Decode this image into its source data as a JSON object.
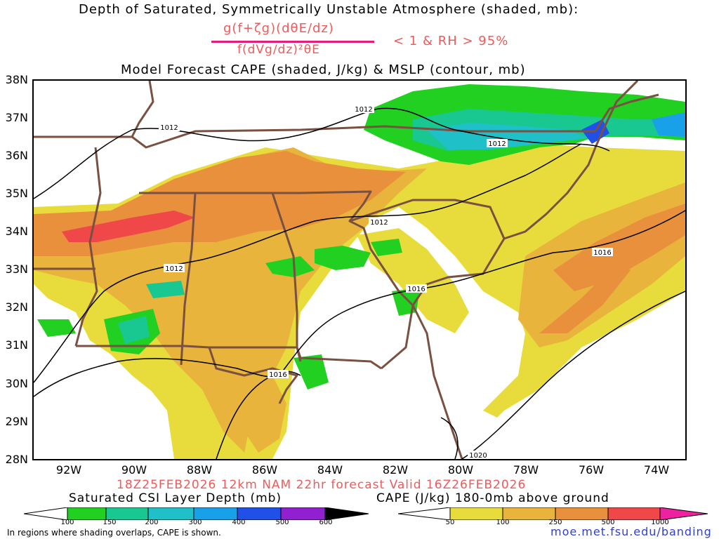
{
  "header": {
    "line1": "Depth of Saturated, Symmetrically Unstable Atmosphere (shaded, mb):",
    "numerator": "g(f+ζg)(dθE/dz)",
    "denominator": "f(dVg/dz)²θE",
    "condition": "< 1 & RH > 95%",
    "line3": "Model Forecast CAPE (shaded, J/kg) & MSLP (contour, mb)"
  },
  "axes": {
    "lat_labels": [
      "38N",
      "37N",
      "36N",
      "35N",
      "34N",
      "33N",
      "32N",
      "31N",
      "30N",
      "29N",
      "28N"
    ],
    "lon_labels": [
      "92W",
      "90W",
      "88W",
      "86W",
      "84W",
      "82W",
      "80W",
      "78W",
      "76W",
      "74W"
    ]
  },
  "isobars": [
    {
      "label": "1012"
    },
    {
      "label": "1012"
    },
    {
      "label": "1012"
    },
    {
      "label": "1012"
    },
    {
      "label": "1012"
    },
    {
      "label": "1016"
    },
    {
      "label": "1016"
    },
    {
      "label": "1016"
    },
    {
      "label": "1020"
    }
  ],
  "footer": {
    "valid_line": "18Z25FEB2026 12km NAM 22hr forecast Valid 16Z26FEB2026",
    "csi_title": "Saturated CSI Layer Depth (mb)",
    "cape_title": "CAPE (J/kg) 180-0mb above ground",
    "csi_ticks": [
      "100",
      "150",
      "200",
      "300",
      "400",
      "500",
      "600"
    ],
    "cape_ticks": [
      "50",
      "100",
      "250",
      "500",
      "1000"
    ],
    "note": "In regions where shading overlaps, CAPE is shown.",
    "url": "moe.met.fsu.edu/banding"
  },
  "colors": {
    "csi": [
      "#22d022",
      "#18c890",
      "#20c0c8",
      "#18a0e8",
      "#2050e8",
      "#5020d8",
      "#9020d0"
    ],
    "cape": [
      "#e8dc3c",
      "#e8b43c",
      "#e8903c",
      "#f04848",
      "#ee22a0"
    ],
    "state_lines": "#7a5040",
    "isobar": "#000000"
  }
}
